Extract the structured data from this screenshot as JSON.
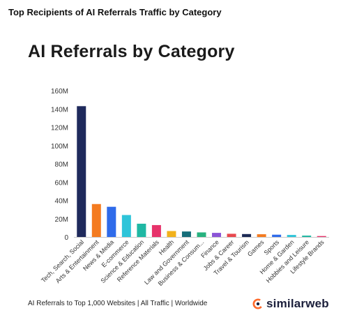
{
  "header": {
    "title": "Top Recipients of AI Referrals Traffic by Category"
  },
  "footer": {
    "note": "AI Referrals to Top 1,000 Websites | All Traffic | Worldwide",
    "brand": "similarweb"
  },
  "brand_icon": "similarweb-logo-icon",
  "chart_data": {
    "type": "bar",
    "title": "AI Referrals by Category",
    "xlabel": "",
    "ylabel": "",
    "ylim": [
      0,
      160
    ],
    "y_ticks": [
      0,
      20,
      40,
      60,
      80,
      100,
      120,
      140,
      160
    ],
    "y_tick_labels": [
      "0",
      "20M",
      "40M",
      "60M",
      "80M",
      "100M",
      "120M",
      "140M",
      "160M"
    ],
    "grid": false,
    "categories": [
      "Tech, Search, Social",
      "Arts & Entertainment",
      "News & Media",
      "E-commerce",
      "Science & Education",
      "Reference Materials",
      "Health",
      "Law and Government",
      "Business & Consum...",
      "Finance",
      "Jobs & Career",
      "Travel & Tourism",
      "Games",
      "Sports",
      "Home & Garden",
      "Hobbies and Leisure",
      "Lifestyle Brands"
    ],
    "values": [
      143,
      36,
      33,
      24,
      14.5,
      13,
      6.5,
      6,
      5,
      4.5,
      3.5,
      3.2,
      3,
      2.5,
      2.2,
      1.5,
      1
    ],
    "colors": [
      "#1f2a5c",
      "#f47b20",
      "#2f6bea",
      "#2ec4d9",
      "#1fb8a4",
      "#e7336b",
      "#f2b21b",
      "#166e7a",
      "#27b27f",
      "#8b54d6",
      "#e8484e",
      "#1c2a55",
      "#f47b20",
      "#2f6bea",
      "#2ec4d9",
      "#1fb8a4",
      "#e7336b"
    ]
  }
}
